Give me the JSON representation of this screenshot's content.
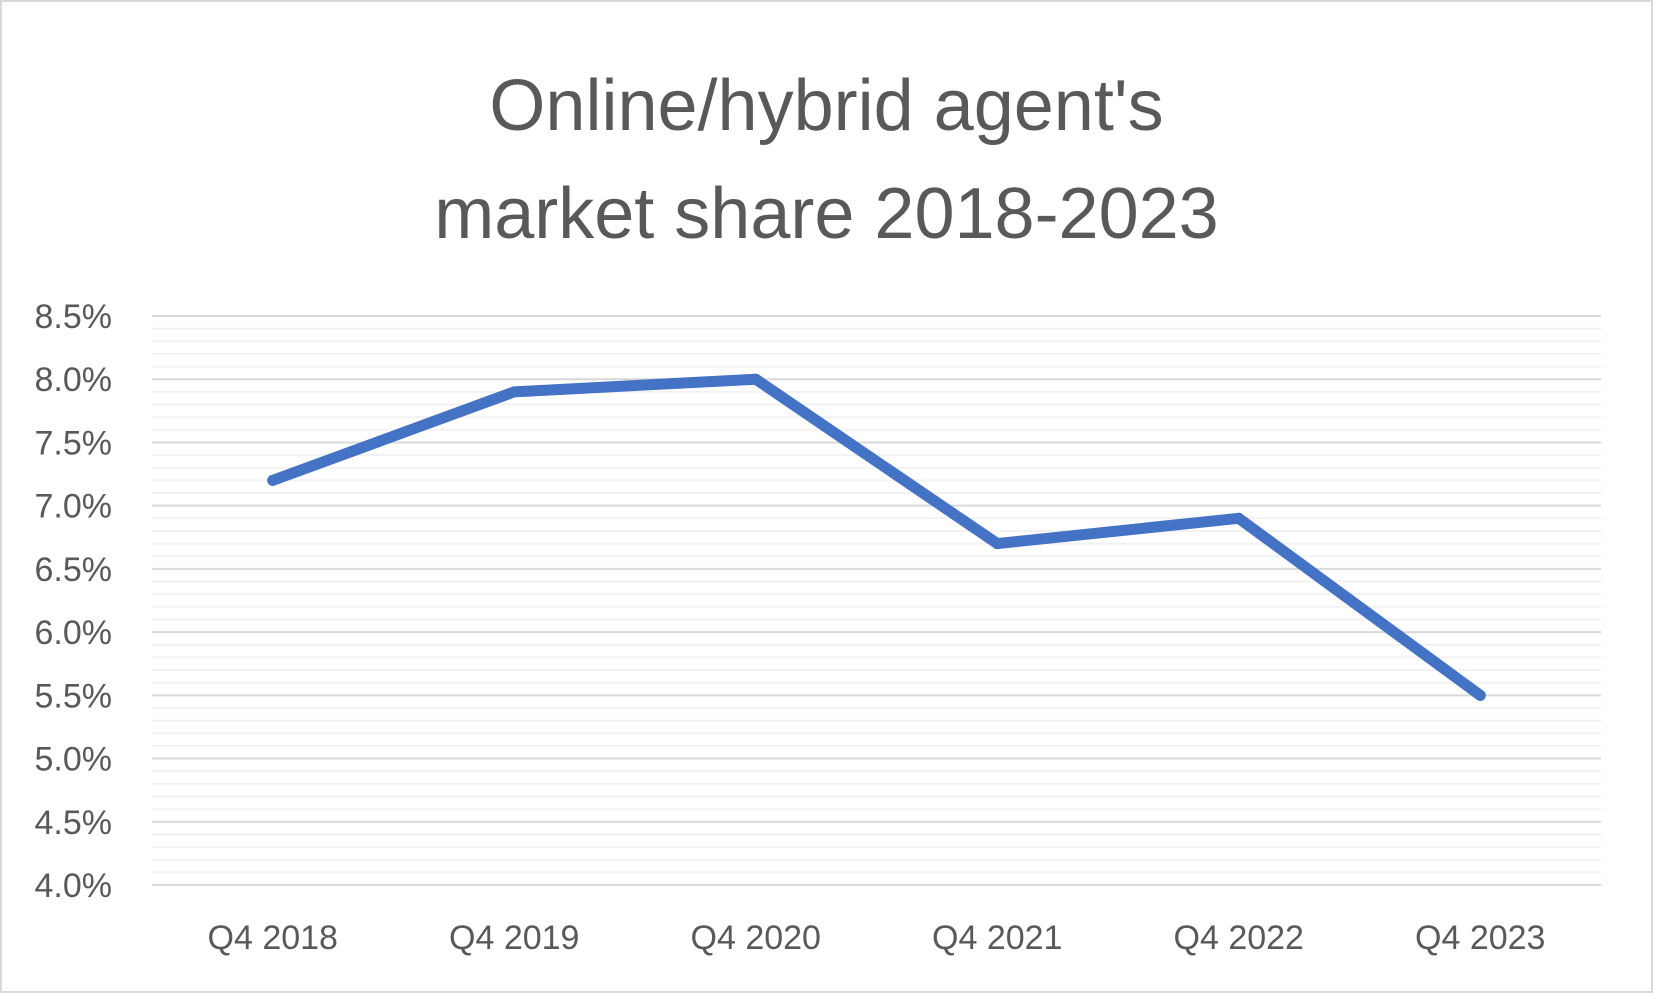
{
  "chart_data": {
    "type": "line",
    "title_lines": [
      "Online/hybrid agent's",
      "market share 2018-2023"
    ],
    "title": "Online/hybrid agent's market share 2018-2023",
    "xlabel": "",
    "ylabel": "",
    "categories": [
      "Q4 2018",
      "Q4 2019",
      "Q4 2020",
      "Q4 2021",
      "Q4 2022",
      "Q4 2023"
    ],
    "series": [
      {
        "values": [
          7.2,
          7.9,
          8.0,
          6.7,
          6.9,
          5.5
        ]
      }
    ],
    "ylim": [
      4.0,
      8.5
    ],
    "ytick_step": 0.5,
    "minor_gridlines_per_major": 5,
    "y_tick_format": "percent_1dp",
    "grid": true,
    "legend": "none",
    "colors": {
      "line": "#4472c4",
      "major_grid": "#d9d9d9",
      "minor_grid": "#f2f2f2",
      "text": "#595959",
      "border": "#d9d9d9"
    }
  }
}
